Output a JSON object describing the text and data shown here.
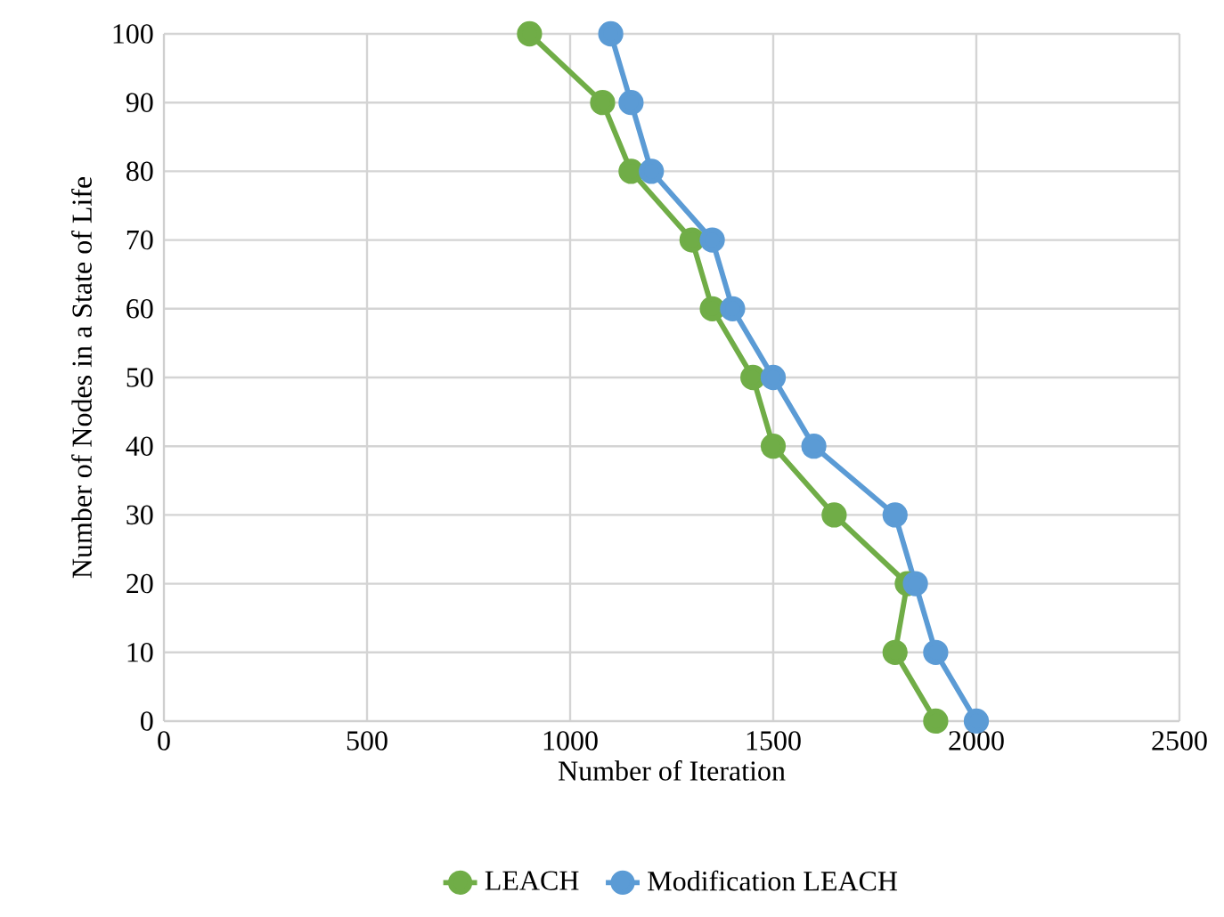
{
  "chart_data": {
    "type": "line",
    "xlabel": "Number of Iteration",
    "ylabel": "Number of Nodes in a State of Life",
    "xlim": [
      0,
      2500
    ],
    "xticks": [
      0,
      500,
      1000,
      1500,
      2000,
      2500
    ],
    "ylim": [
      0,
      100
    ],
    "yticks": [
      0,
      10,
      20,
      30,
      40,
      50,
      60,
      70,
      80,
      90,
      100
    ],
    "grid": true,
    "legend": "bottom",
    "marker": "circle",
    "line_style": "solid",
    "series": [
      {
        "name": "LEACH",
        "color": "#70ad47",
        "x": [
          900,
          1080,
          1150,
          1300,
          1350,
          1450,
          1500,
          1650,
          1830,
          1800,
          1900
        ],
        "values": [
          100,
          90,
          80,
          70,
          60,
          50,
          40,
          30,
          20,
          10,
          0
        ]
      },
      {
        "name": "Modification LEACH",
        "color": "#5b9bd5",
        "x": [
          1100,
          1150,
          1200,
          1350,
          1400,
          1500,
          1600,
          1800,
          1850,
          1900,
          2000
        ],
        "values": [
          100,
          90,
          80,
          70,
          60,
          50,
          40,
          30,
          20,
          10,
          0
        ]
      }
    ]
  }
}
